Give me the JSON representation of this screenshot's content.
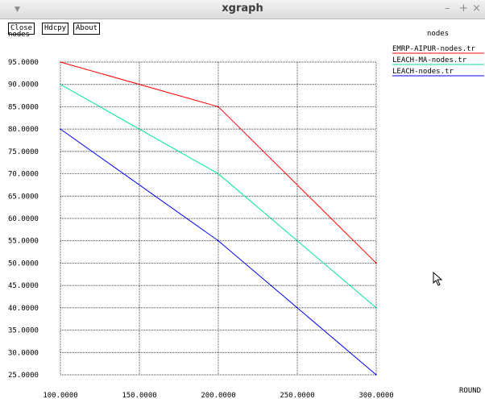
{
  "window": {
    "title": "xgraph",
    "menu_icon": "down-triangle-icon",
    "minimize_glyph": "–",
    "maximize_glyph": "+",
    "close_glyph": "×"
  },
  "toolbar": {
    "close_label": "Close",
    "hdcpy_label": "Hdcpy",
    "about_label": "About"
  },
  "chart_data": {
    "type": "line",
    "title": "nodes",
    "xlabel": "ROUND",
    "ylabel": "nodes",
    "xlim": [
      100,
      300
    ],
    "ylim": [
      25,
      95
    ],
    "grid": true,
    "legend_position": "top-right",
    "x_ticks": [
      100,
      150,
      200,
      250,
      300
    ],
    "x_tick_labels": [
      "100.0000",
      "150.0000",
      "200.0000",
      "250.0000",
      "300.0000"
    ],
    "y_ticks": [
      95,
      90,
      85,
      80,
      75,
      70,
      65,
      60,
      55,
      50,
      45,
      40,
      35,
      30,
      25
    ],
    "y_tick_labels": [
      "95.0000",
      "90.0000",
      "85.0000",
      "80.0000",
      "75.0000",
      "70.0000",
      "65.0000",
      "60.0000",
      "55.0000",
      "50.0000",
      "45.0000",
      "40.0000",
      "35.0000",
      "30.0000",
      "25.0000"
    ],
    "series": [
      {
        "name": "EMRP-AIPUR-nodes.tr",
        "color": "#ff0000",
        "x": [
          100,
          200,
          300
        ],
        "y": [
          95,
          85,
          50
        ]
      },
      {
        "name": "LEACH-MA-nodes.tr",
        "color": "#00e68c",
        "x": [
          100,
          200,
          300
        ],
        "y": [
          90,
          70,
          40
        ]
      },
      {
        "name": "LEACH-nodes.tr",
        "color": "#0000ff",
        "x": [
          100,
          200,
          300
        ],
        "y": [
          80,
          55,
          25
        ]
      }
    ]
  }
}
